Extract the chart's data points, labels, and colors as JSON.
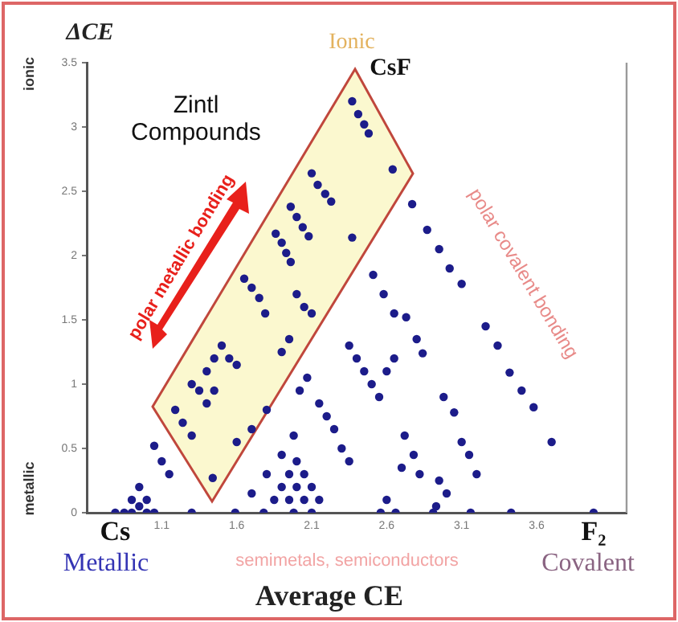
{
  "chart_data": {
    "type": "scatter",
    "xlabel": "Average CE",
    "ylabel": "ΔCE",
    "xlim": [
      0.6,
      4.2
    ],
    "ylim": [
      0,
      3.5
    ],
    "xticks": [
      1.1,
      1.6,
      2.1,
      2.6,
      3.1,
      3.6
    ],
    "yticks": [
      0,
      0.5,
      1,
      1.5,
      2,
      2.5,
      3,
      3.5
    ],
    "grid": false,
    "legend": false,
    "marker": "circle",
    "annotations": [
      "ionic",
      "metallic",
      "Ionic",
      "CsF",
      "Zintl Compounds",
      "polar metallic bonding",
      "polar covalent bonding",
      "Metallic",
      "semimetals, semiconductors",
      "Covalent",
      {
        "text": "Cs",
        "x": 0.79,
        "y": 0
      },
      {
        "text": "F₂",
        "x": 3.98,
        "y": 0
      }
    ],
    "series": [
      {
        "color": "#1c1c8a",
        "x": [
          2.37,
          2.41,
          2.45,
          2.48,
          2.64,
          2.1,
          2.14,
          2.19,
          2.23,
          1.96,
          2.0,
          2.04,
          2.08,
          1.86,
          1.9,
          1.93,
          1.96,
          2.37,
          2.77,
          2.87,
          2.95,
          3.02,
          3.1,
          1.65,
          1.7,
          1.75,
          2.0,
          2.05,
          2.1,
          2.51,
          2.58,
          2.65,
          3.26,
          3.34,
          3.42,
          3.5,
          3.58,
          3.7,
          2.73,
          2.8,
          2.84,
          1.19,
          1.24,
          1.3,
          1.3,
          1.35,
          1.4,
          1.45,
          1.5,
          1.55,
          1.6,
          1.45,
          1.4,
          1.44,
          1.6,
          1.7,
          1.8,
          1.7,
          1.8,
          1.9,
          1.98,
          1.79,
          1.9,
          1.95,
          2.02,
          2.07,
          2.15,
          2.2,
          2.25,
          2.3,
          2.35,
          2.35,
          2.4,
          2.45,
          2.5,
          2.55,
          2.6,
          2.65,
          2.72,
          2.78,
          2.82,
          2.7,
          2.95,
          3.0,
          2.93,
          2.98,
          3.05,
          3.1,
          3.15,
          3.2,
          2.6,
          2.0,
          1.95,
          2.05,
          1.9,
          2.0,
          2.1,
          1.85,
          1.95,
          2.05,
          2.15,
          0.85,
          0.9,
          0.95,
          1.0,
          1.05,
          0.9,
          0.95,
          1.0,
          1.05,
          1.1,
          1.15,
          0.79,
          1.3,
          1.59,
          1.78,
          1.98,
          2.1,
          2.56,
          2.66,
          2.91,
          3.16,
          3.43,
          3.98
        ],
        "values": [
          3.2,
          3.1,
          3.02,
          2.95,
          2.67,
          2.64,
          2.55,
          2.48,
          2.42,
          2.38,
          2.3,
          2.22,
          2.15,
          2.17,
          2.1,
          2.02,
          1.95,
          2.14,
          2.4,
          2.2,
          2.05,
          1.9,
          1.78,
          1.82,
          1.75,
          1.67,
          1.7,
          1.6,
          1.55,
          1.85,
          1.7,
          1.55,
          1.45,
          1.3,
          1.09,
          0.95,
          0.82,
          0.55,
          1.52,
          1.35,
          1.24,
          0.8,
          0.7,
          0.6,
          1.0,
          0.95,
          1.1,
          1.2,
          1.3,
          1.2,
          1.15,
          0.95,
          0.85,
          0.27,
          0.55,
          0.65,
          0.8,
          0.15,
          0.3,
          0.45,
          0.6,
          1.55,
          1.25,
          1.35,
          0.95,
          1.05,
          0.85,
          0.75,
          0.65,
          0.5,
          0.4,
          1.3,
          1.2,
          1.1,
          1.0,
          0.9,
          1.1,
          1.2,
          0.6,
          0.45,
          0.3,
          0.35,
          0.25,
          0.15,
          0.05,
          0.9,
          0.78,
          0.55,
          0.45,
          0.3,
          0.1,
          0.4,
          0.3,
          0.3,
          0.2,
          0.2,
          0.2,
          0.1,
          0.1,
          0.1,
          0.1,
          0,
          0.1,
          0.2,
          0.1,
          0,
          0,
          0.05,
          0,
          0.52,
          0.4,
          0.3,
          0,
          0,
          0,
          0,
          0,
          0,
          0,
          0,
          0,
          0,
          0,
          0
        ]
      }
    ]
  }
}
